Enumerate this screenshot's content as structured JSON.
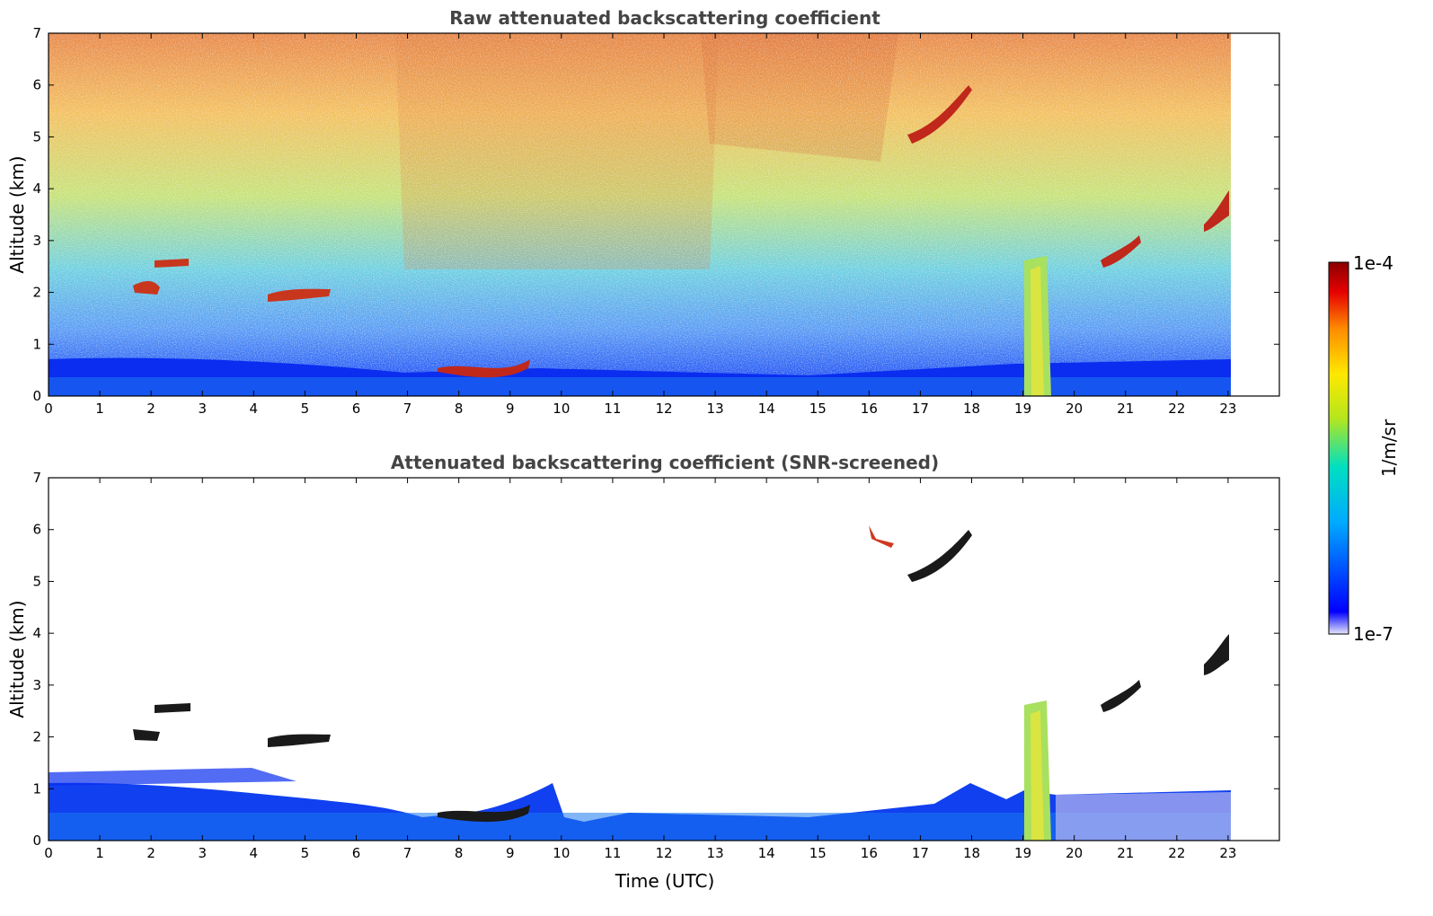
{
  "chart_data": [
    {
      "type": "heatmap",
      "title": "Raw attenuated backscattering coefficient",
      "xlabel": "",
      "ylabel": "Altitude (km)",
      "xlim": [
        0,
        24
      ],
      "ylim": [
        0,
        7
      ],
      "x_ticks": [
        "0",
        "1",
        "2",
        "3",
        "4",
        "5",
        "6",
        "7",
        "8",
        "9",
        "10",
        "11",
        "12",
        "13",
        "14",
        "15",
        "16",
        "17",
        "18",
        "19",
        "20",
        "21",
        "22",
        "23"
      ],
      "y_ticks": [
        "0",
        "1",
        "2",
        "3",
        "4",
        "5",
        "6",
        "7"
      ],
      "data_end_time": 23,
      "features": [
        {
          "name": "boundary layer aerosol",
          "level": "low",
          "time_range": [
            0,
            23
          ],
          "altitude_top": 0.6
        },
        {
          "name": "cloud layer",
          "time": 8.4,
          "altitude": 0.5
        },
        {
          "name": "cloud layer",
          "time": 2.2,
          "altitude": 2.5
        },
        {
          "name": "cloud layer",
          "time": 5.0,
          "altitude": 1.9
        },
        {
          "name": "precipitation shaft",
          "time_range": [
            19,
            19.5
          ],
          "altitude_top": 2.7
        },
        {
          "name": "elevated cloud",
          "time": 17.5,
          "altitude": 5.5
        },
        {
          "name": "elevated cloud",
          "time": 22.8,
          "altitude": 3.5
        }
      ]
    },
    {
      "type": "heatmap",
      "title": "Attenuated backscattering coefficient (SNR-screened)",
      "xlabel": "Time (UTC)",
      "ylabel": "Altitude (km)",
      "xlim": [
        0,
        24
      ],
      "ylim": [
        0,
        7
      ],
      "x_ticks": [
        "0",
        "1",
        "2",
        "3",
        "4",
        "5",
        "6",
        "7",
        "8",
        "9",
        "10",
        "11",
        "12",
        "13",
        "14",
        "15",
        "16",
        "17",
        "18",
        "19",
        "20",
        "21",
        "22",
        "23"
      ],
      "y_ticks": [
        "0",
        "1",
        "2",
        "3",
        "4",
        "5",
        "6",
        "7"
      ],
      "data_end_time": 23
    }
  ],
  "colorbar": {
    "label": "1/m/sr",
    "max_label": "1e-4",
    "min_label": "1e-7",
    "colors": [
      "#e6e6fa",
      "#0000ff",
      "#00aaff",
      "#00e0c0",
      "#b5e61d",
      "#ffe800",
      "#ff8c00",
      "#e60000",
      "#8b0000"
    ]
  }
}
